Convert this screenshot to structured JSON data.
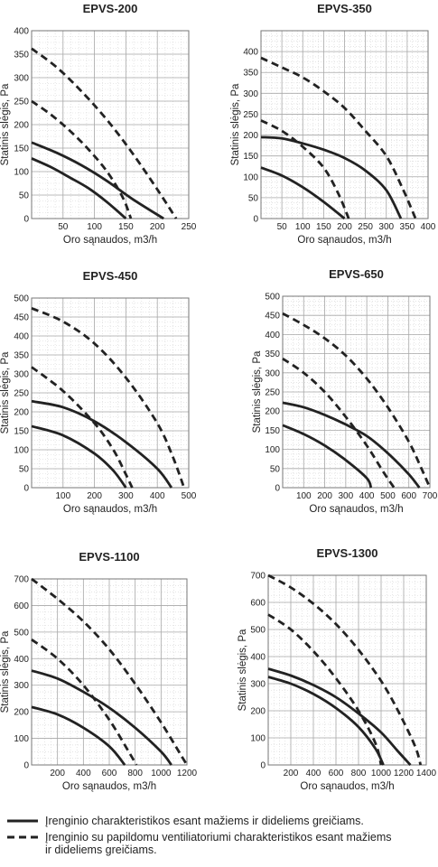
{
  "chart_data": [
    {
      "type": "line",
      "title": "EPVS-200",
      "xlabel": "Oro sąnaudos, m3/h",
      "ylabel": "Statinis slėgis, Pa",
      "xlim": [
        0,
        250
      ],
      "ylim": [
        0,
        400
      ],
      "xticks": [
        50,
        100,
        150,
        200,
        250
      ],
      "yticks": [
        0,
        50,
        100,
        150,
        200,
        250,
        300,
        350,
        400
      ],
      "series": [
        {
          "style": "solid",
          "points": [
            [
              0,
              128
            ],
            [
              30,
              110
            ],
            [
              60,
              88
            ],
            [
              90,
              65
            ],
            [
              120,
              35
            ],
            [
              150,
              0
            ]
          ]
        },
        {
          "style": "solid",
          "points": [
            [
              0,
              162
            ],
            [
              40,
              140
            ],
            [
              80,
              113
            ],
            [
              120,
              80
            ],
            [
              160,
              42
            ],
            [
              210,
              0
            ]
          ]
        },
        {
          "style": "dashed",
          "points": [
            [
              0,
              250
            ],
            [
              30,
              222
            ],
            [
              60,
              188
            ],
            [
              90,
              148
            ],
            [
              120,
              100
            ],
            [
              145,
              45
            ],
            [
              158,
              0
            ]
          ]
        },
        {
          "style": "dashed",
          "points": [
            [
              0,
              362
            ],
            [
              40,
              322
            ],
            [
              80,
              270
            ],
            [
              120,
              210
            ],
            [
              160,
              140
            ],
            [
              200,
              62
            ],
            [
              230,
              0
            ]
          ]
        }
      ]
    },
    {
      "type": "line",
      "title": "EPVS-350",
      "xlabel": "Oro sąnaudos, m3/h",
      "ylabel": "Statinis slėgis, Pa",
      "xlim": [
        0,
        400
      ],
      "ylim": [
        0,
        450
      ],
      "xticks": [
        50,
        100,
        150,
        200,
        250,
        300,
        350,
        400
      ],
      "yticks": [
        0,
        50,
        100,
        150,
        200,
        250,
        300,
        350,
        400
      ],
      "series": [
        {
          "style": "solid",
          "points": [
            [
              0,
              122
            ],
            [
              50,
              103
            ],
            [
              100,
              75
            ],
            [
              150,
              40
            ],
            [
              200,
              0
            ]
          ]
        },
        {
          "style": "solid",
          "points": [
            [
              0,
              195
            ],
            [
              50,
              192
            ],
            [
              100,
              180
            ],
            [
              150,
              165
            ],
            [
              200,
              145
            ],
            [
              250,
              115
            ],
            [
              300,
              68
            ],
            [
              335,
              0
            ]
          ]
        },
        {
          "style": "dashed",
          "points": [
            [
              0,
              235
            ],
            [
              50,
              210
            ],
            [
              100,
              172
            ],
            [
              150,
              122
            ],
            [
              185,
              60
            ],
            [
              210,
              0
            ]
          ]
        },
        {
          "style": "dashed",
          "points": [
            [
              0,
              385
            ],
            [
              50,
              362
            ],
            [
              100,
              338
            ],
            [
              150,
              305
            ],
            [
              200,
              265
            ],
            [
              250,
              210
            ],
            [
              300,
              150
            ],
            [
              340,
              70
            ],
            [
              370,
              0
            ]
          ]
        }
      ]
    },
    {
      "type": "line",
      "title": "EPVS-450",
      "xlabel": "Oro sąnaudos, m3/h",
      "ylabel": "Statinis slėgis, Pa",
      "xlim": [
        0,
        500
      ],
      "ylim": [
        0,
        500
      ],
      "xticks": [
        100,
        200,
        300,
        400,
        500
      ],
      "yticks": [
        0,
        50,
        100,
        150,
        200,
        250,
        300,
        350,
        400,
        450,
        500
      ],
      "series": [
        {
          "style": "solid",
          "points": [
            [
              0,
              162
            ],
            [
              100,
              138
            ],
            [
              200,
              90
            ],
            [
              260,
              45
            ],
            [
              300,
              0
            ]
          ]
        },
        {
          "style": "solid",
          "points": [
            [
              0,
              228
            ],
            [
              100,
              212
            ],
            [
              200,
              175
            ],
            [
              300,
              120
            ],
            [
              400,
              50
            ],
            [
              445,
              0
            ]
          ]
        },
        {
          "style": "dashed",
          "points": [
            [
              0,
              318
            ],
            [
              100,
              255
            ],
            [
              200,
              170
            ],
            [
              260,
              100
            ],
            [
              300,
              35
            ],
            [
              320,
              0
            ]
          ]
        },
        {
          "style": "dashed",
          "points": [
            [
              0,
              473
            ],
            [
              100,
              438
            ],
            [
              200,
              380
            ],
            [
              300,
              290
            ],
            [
              400,
              170
            ],
            [
              450,
              80
            ],
            [
              485,
              0
            ]
          ]
        }
      ]
    },
    {
      "type": "line",
      "title": "EPVS-650",
      "xlabel": "Oro sąnaudos, m3/h",
      "ylabel": "Statinis slėgis, Pa",
      "xlim": [
        0,
        700
      ],
      "ylim": [
        0,
        500
      ],
      "xticks": [
        100,
        200,
        300,
        400,
        500,
        600,
        700
      ],
      "yticks": [
        0,
        50,
        100,
        150,
        200,
        250,
        300,
        350,
        400,
        450,
        500
      ],
      "series": [
        {
          "style": "solid",
          "points": [
            [
              0,
              163
            ],
            [
              100,
              140
            ],
            [
              200,
              110
            ],
            [
              300,
              72
            ],
            [
              400,
              25
            ],
            [
              420,
              0
            ]
          ]
        },
        {
          "style": "solid",
          "points": [
            [
              0,
              222
            ],
            [
              100,
              210
            ],
            [
              200,
              190
            ],
            [
              300,
              165
            ],
            [
              400,
              135
            ],
            [
              500,
              90
            ],
            [
              600,
              35
            ],
            [
              650,
              0
            ]
          ]
        },
        {
          "style": "dashed",
          "points": [
            [
              0,
              337
            ],
            [
              100,
              300
            ],
            [
              200,
              250
            ],
            [
              300,
              185
            ],
            [
              400,
              110
            ],
            [
              480,
              40
            ],
            [
              530,
              0
            ]
          ]
        },
        {
          "style": "dashed",
          "points": [
            [
              0,
              455
            ],
            [
              100,
              425
            ],
            [
              200,
              390
            ],
            [
              300,
              345
            ],
            [
              400,
              285
            ],
            [
              500,
              210
            ],
            [
              600,
              120
            ],
            [
              660,
              50
            ],
            [
              700,
              0
            ]
          ]
        }
      ]
    },
    {
      "type": "line",
      "title": "EPVS-1100",
      "xlabel": "Oro sąnaudos, m3/h",
      "ylabel": "Statinis slėgis, Pa",
      "xlim": [
        0,
        1200
      ],
      "ylim": [
        0,
        700
      ],
      "xticks": [
        200,
        400,
        600,
        800,
        1000,
        1200
      ],
      "yticks": [
        0,
        100,
        200,
        300,
        400,
        500,
        600,
        700
      ],
      "series": [
        {
          "style": "solid",
          "points": [
            [
              0,
              218
            ],
            [
              200,
              190
            ],
            [
              400,
              140
            ],
            [
              600,
              70
            ],
            [
              720,
              0
            ]
          ]
        },
        {
          "style": "solid",
          "points": [
            [
              0,
              355
            ],
            [
              200,
              325
            ],
            [
              400,
              275
            ],
            [
              600,
              215
            ],
            [
              800,
              140
            ],
            [
              1000,
              50
            ],
            [
              1080,
              0
            ]
          ]
        },
        {
          "style": "dashed",
          "points": [
            [
              0,
              472
            ],
            [
              200,
              400
            ],
            [
              400,
              300
            ],
            [
              600,
              170
            ],
            [
              750,
              50
            ],
            [
              810,
              0
            ]
          ]
        },
        {
          "style": "dashed",
          "points": [
            [
              0,
              700
            ],
            [
              200,
              625
            ],
            [
              400,
              540
            ],
            [
              600,
              435
            ],
            [
              800,
              305
            ],
            [
              1000,
              160
            ],
            [
              1150,
              40
            ],
            [
              1200,
              0
            ]
          ]
        }
      ]
    },
    {
      "type": "line",
      "title": "EPVS-1300",
      "xlabel": "Oro sąnaudos, m3/h",
      "ylabel": "Statinis slėgis, Pa",
      "xlim": [
        0,
        1400
      ],
      "ylim": [
        0,
        700
      ],
      "xticks": [
        200,
        400,
        600,
        800,
        1000,
        1200,
        1400
      ],
      "yticks": [
        0,
        100,
        200,
        300,
        400,
        500,
        600,
        700
      ],
      "series": [
        {
          "style": "solid",
          "points": [
            [
              0,
              325
            ],
            [
              200,
              300
            ],
            [
              400,
              262
            ],
            [
              600,
              210
            ],
            [
              800,
              140
            ],
            [
              950,
              60
            ],
            [
              1020,
              0
            ]
          ]
        },
        {
          "style": "solid",
          "points": [
            [
              0,
              355
            ],
            [
              200,
              330
            ],
            [
              400,
              295
            ],
            [
              600,
              250
            ],
            [
              800,
              190
            ],
            [
              1000,
              120
            ],
            [
              1150,
              50
            ],
            [
              1260,
              0
            ]
          ]
        },
        {
          "style": "dashed",
          "points": [
            [
              0,
              555
            ],
            [
              200,
              500
            ],
            [
              400,
              420
            ],
            [
              600,
              320
            ],
            [
              800,
              200
            ],
            [
              950,
              80
            ],
            [
              1000,
              0
            ]
          ]
        },
        {
          "style": "dashed",
          "points": [
            [
              0,
              700
            ],
            [
              200,
              655
            ],
            [
              400,
              595
            ],
            [
              600,
              520
            ],
            [
              800,
              425
            ],
            [
              1000,
              310
            ],
            [
              1150,
              200
            ],
            [
              1300,
              70
            ],
            [
              1350,
              0
            ]
          ]
        }
      ]
    }
  ],
  "legend": {
    "solid_label": "Įrenginio charakteristikos esant mažiems ir dideliems greičiams.",
    "dashed_label_line1": "Įrenginio su papildomu ventiliatoriumi  charakteristikos esant mažiems",
    "dashed_label_line2": "ir dideliems greičiams."
  },
  "colors": {
    "curve": "#222222",
    "grid_major": "#a8a8a8",
    "grid_minor": "#d4d4d4"
  }
}
